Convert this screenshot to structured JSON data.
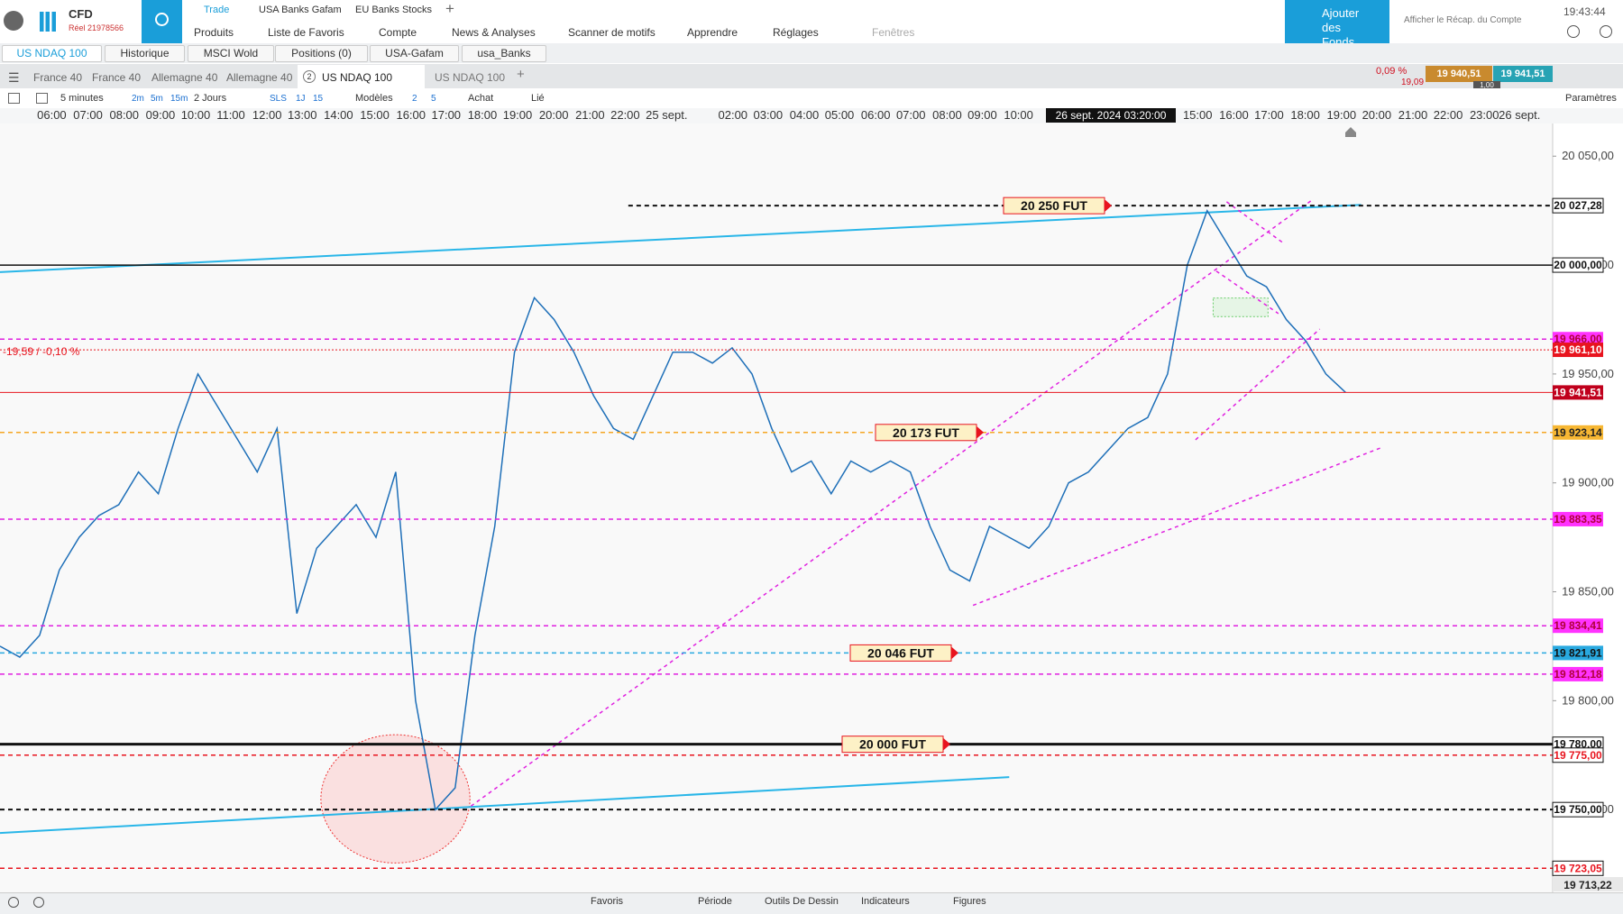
{
  "header": {
    "brand": "CFD",
    "account": "Réel 21978566",
    "top_tabs": [
      "Trade",
      "USA Banks Gafam",
      "EU Banks Stocks"
    ],
    "menu": [
      "Produits",
      "Liste de Favoris",
      "Compte",
      "News & Analyses",
      "Scanner de motifs",
      "Apprendre",
      "Réglages",
      "Fenêtres"
    ],
    "funds_button": "Ajouter des Fonds",
    "summary_link": "Afficher le Récap. du Compte",
    "clock": "19:43:44"
  },
  "watchlist_tabs": [
    "US NDAQ 100",
    "Historique",
    "MSCI Wold",
    "Positions (0)",
    "USA-Gafam",
    "usa_Banks"
  ],
  "chart_tabs": {
    "tabs": [
      "France 40",
      "France 40",
      "Allemagne 40",
      "Allemagne 40",
      "US NDAQ 100",
      "US NDAQ 100"
    ],
    "active_count": "2"
  },
  "quote": {
    "change_pct": "0,09 %",
    "change": "19,09",
    "bid": "19 940,51",
    "ask": "19 941,51",
    "spread": "1,00"
  },
  "toolbar": {
    "interval": "5 minutes",
    "quick": [
      "2m",
      "5m",
      "15m"
    ],
    "range": "2 Jours",
    "sls": "SLS",
    "day": "1J",
    "fifteen": "15",
    "models": "Modèles",
    "two": "2",
    "five": "5",
    "buy": "Achat",
    "linked": "Lié",
    "settings": "Paramètres"
  },
  "chart": {
    "ylim": [
      19712,
      20065
    ],
    "price_ticks": [
      {
        "value": 20050,
        "label": "20 050,00"
      },
      {
        "value": 20000,
        "label": "20 000,00"
      },
      {
        "value": 19950,
        "label": "19 950,00"
      },
      {
        "value": 19900,
        "label": "19 900,00"
      },
      {
        "value": 19850,
        "label": "19 850,00"
      },
      {
        "value": 19800,
        "label": "19 800,00"
      },
      {
        "value": 19750,
        "label": "19 750,00"
      }
    ],
    "time_labels": [
      "06:00",
      "07:00",
      "08:00",
      "09:00",
      "10:00",
      "11:00",
      "12:00",
      "13:00",
      "14:00",
      "15:00",
      "16:00",
      "17:00",
      "18:00",
      "19:00",
      "20:00",
      "21:00",
      "22:00",
      "25 sept.",
      "02:00",
      "03:00",
      "04:00",
      "05:00",
      "06:00",
      "07:00",
      "08:00",
      "09:00",
      "10:00",
      "15:00",
      "16:00",
      "17:00",
      "18:00",
      "19:00",
      "20:00",
      "21:00",
      "22:00",
      "23:00",
      "26 sept."
    ],
    "cursor_time": "26 sept. 2024 03:20:00",
    "change_label": "-19,59 / -0,10 %",
    "levels": [
      {
        "value": 20027.28,
        "label": "20 027,28",
        "color": "#111111",
        "style": "dashed",
        "width": 2,
        "label_bg": "#ffffff",
        "label_color": "#111111"
      },
      {
        "value": 20000,
        "label": "20 000,00",
        "color": "#111111",
        "style": "solid",
        "width": 1.5,
        "label_bg": "#ffffff",
        "label_color": "#111111"
      },
      {
        "value": 19966,
        "label": "19 966,00",
        "color": "#e020e0",
        "style": "dashed",
        "width": 1.5,
        "label_bg": "#ff33ff",
        "label_color": "#b0003a"
      },
      {
        "value": 19961.1,
        "label": "19 961,10",
        "color": "#e8141e",
        "style": "dotted",
        "width": 1,
        "label_bg": "#e8141e",
        "label_color": "#ffffff"
      },
      {
        "value": 19941.51,
        "label": "19 941,51",
        "color": "#e8141e",
        "style": "solid",
        "width": 1,
        "label_bg": "#c0001c",
        "label_color": "#ffffff"
      },
      {
        "value": 19923.14,
        "label": "19 923,14",
        "color": "#f5a623",
        "style": "dashed",
        "width": 1.5,
        "label_bg": "#f7b733",
        "label_color": "#222222"
      },
      {
        "value": 19883.35,
        "label": "19 883,35",
        "color": "#e020e0",
        "style": "dashed",
        "width": 1.5,
        "label_bg": "#ff33ff",
        "label_color": "#b0003a"
      },
      {
        "value": 19834.41,
        "label": "19 834,41",
        "color": "#e020e0",
        "style": "dashed",
        "width": 1.5,
        "label_bg": "#ff33ff",
        "label_color": "#b0003a"
      },
      {
        "value": 19821.91,
        "label": "19 821,91",
        "color": "#29a9e0",
        "style": "dashed",
        "width": 1.5,
        "label_bg": "#29a9e0",
        "label_color": "#111111"
      },
      {
        "value": 19812.18,
        "label": "19 812,18",
        "color": "#e020e0",
        "style": "dashed",
        "width": 1.5,
        "label_bg": "#ff33ff",
        "label_color": "#b0003a"
      },
      {
        "value": 19780,
        "label": "19 780,00",
        "color": "#111111",
        "style": "solid",
        "width": 3,
        "label_bg": "#ffffff",
        "label_color": "#111111"
      },
      {
        "value": 19775,
        "label": "19 775,00",
        "color": "#e8141e",
        "style": "dashed",
        "width": 1.5,
        "label_bg": "#ffffff",
        "label_color": "#e8141e"
      },
      {
        "value": 19750,
        "label": "19 750,00",
        "color": "#111111",
        "style": "dashed",
        "width": 2,
        "label_bg": "#ffffff",
        "label_color": "#111111"
      },
      {
        "value": 19723.05,
        "label": "19 723,05",
        "color": "#e8141e",
        "style": "dashed",
        "width": 1.5,
        "label_bg": "#ffffff",
        "label_color": "#e8141e"
      }
    ],
    "annotations": [
      "20 250 FUT",
      "20 173 FUT",
      "20 046 FUT",
      "20 000 FUT"
    ],
    "bottom_price": "19 713,22",
    "price_path": [
      19825,
      19820,
      19830,
      19860,
      19875,
      19885,
      19890,
      19905,
      19895,
      19925,
      19950,
      19935,
      19920,
      19905,
      19925,
      19840,
      19870,
      19880,
      19890,
      19875,
      19905,
      19800,
      19750,
      19760,
      19830,
      19880,
      19960,
      19985,
      19975,
      19960,
      19940,
      19925,
      19920,
      19940,
      19960,
      19960,
      19955,
      19962,
      19950,
      19925,
      19905,
      19910,
      19895,
      19910,
      19905,
      19910,
      19905,
      19880,
      19860,
      19855,
      19880,
      19875,
      19870,
      19880,
      19900,
      19905,
      19915,
      19925,
      19930,
      19950,
      20000,
      20025,
      20010,
      19995,
      19990,
      19975,
      19965,
      19950,
      19941.51
    ]
  },
  "footer": [
    "Favoris",
    "Période",
    "Outils De Dessin",
    "Indicateurs",
    "Figures"
  ]
}
